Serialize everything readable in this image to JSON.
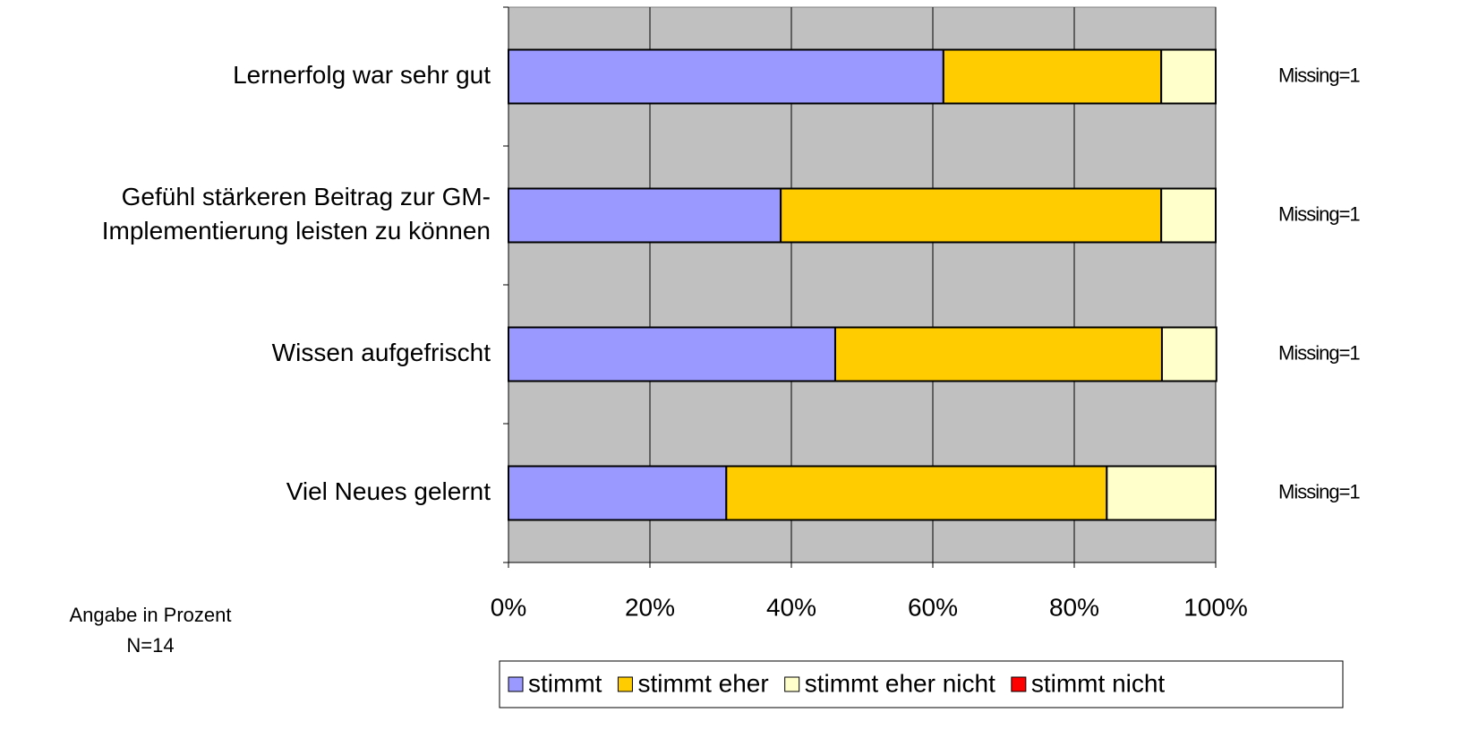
{
  "chart_data": {
    "type": "stacked_barh",
    "categories": [
      "Lernerfolg war sehr gut",
      [
        "Gefühl stärkeren Beitrag zur GM-",
        "Implementierung leisten zu können"
      ],
      "Wissen aufgefrischt",
      "Viel Neues gelernt"
    ],
    "series": [
      {
        "name": "stimmt",
        "color": "#9999ff",
        "values": [
          61.5,
          38.5,
          46.2,
          30.8
        ]
      },
      {
        "name": "stimmt eher",
        "color": "#ffcc00",
        "values": [
          30.8,
          53.8,
          46.2,
          53.8
        ]
      },
      {
        "name": "stimmt eher nicht",
        "color": "#ffffcc",
        "values": [
          7.7,
          7.7,
          7.7,
          15.4
        ]
      },
      {
        "name": "stimmt nicht",
        "color": "#ff0000",
        "values": [
          0,
          0,
          0,
          0
        ]
      }
    ],
    "xlim": [
      0,
      100
    ],
    "xticks": [
      {
        "value": 0,
        "label": "0%"
      },
      {
        "value": 20,
        "label": "20%"
      },
      {
        "value": 40,
        "label": "40%"
      },
      {
        "value": 60,
        "label": "60%"
      },
      {
        "value": 80,
        "label": "80%"
      },
      {
        "value": 100,
        "label": "100%"
      }
    ],
    "grid": true,
    "row_annotations": [
      "Missing=1",
      "Missing=1",
      "Missing=1",
      "Missing=1"
    ],
    "footnotes": [
      "Angabe in Prozent",
      "N=14"
    ],
    "legend": "bottom"
  }
}
